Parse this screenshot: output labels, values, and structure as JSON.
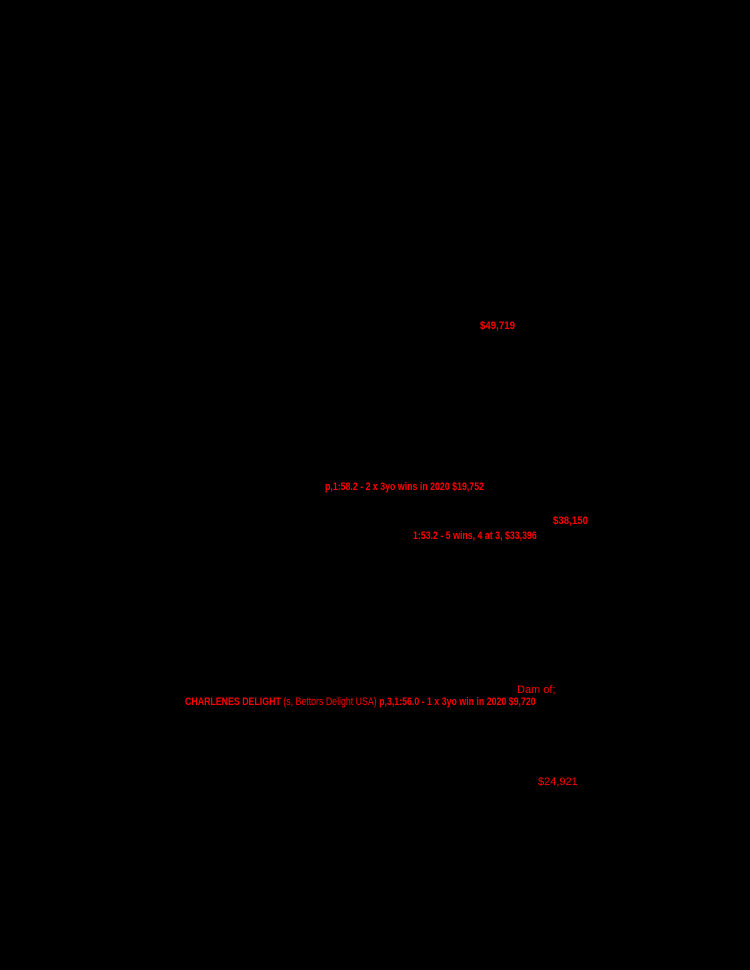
{
  "page": {
    "background_color": "#000000",
    "highlight_color": "#ff0000"
  },
  "pedigree": {
    "earnings_top": "$49,719",
    "record_line_1": "p,1:58.2 - 2 x 3yo wins in 2020 $19,752",
    "earnings_mid": "$38,150",
    "record_line_2": "1:53.2 - 5 wins, 4 at 3, $33,396",
    "dam_of_label": "Dam of;",
    "offspring": {
      "name": "CHARLENES DELIGHT",
      "sire_info": " (s, Bettors Delight USA) ",
      "record": "p,3,1:56.0 - 1 x 3yo win in 2020 $9,720"
    },
    "earnings_bottom": "$24,921"
  }
}
